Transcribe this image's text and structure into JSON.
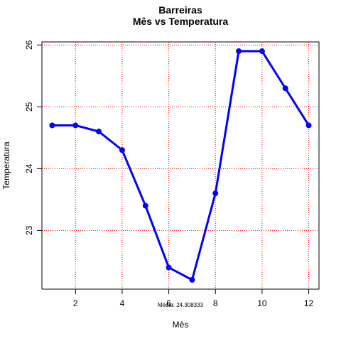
{
  "chart_data": {
    "type": "line",
    "title": "Barreiras",
    "subtitle": "Mês vs Temperatura",
    "xlabel": "Mês",
    "ylabel": "Temperatura",
    "x": [
      1,
      2,
      3,
      4,
      5,
      6,
      7,
      8,
      9,
      10,
      11,
      12
    ],
    "series": [
      {
        "values": [
          24.7,
          24.7,
          24.6,
          24.3,
          23.4,
          22.4,
          22.2,
          23.6,
          25.9,
          25.9,
          25.3,
          24.7
        ]
      }
    ],
    "xlim": [
      0.56,
      12.44
    ],
    "ylim": [
      22.05,
      26.05
    ],
    "xticks": [
      2,
      4,
      6,
      8,
      10,
      12
    ],
    "yticks": [
      23,
      24,
      25,
      26
    ],
    "grid": true,
    "annotation": "Média: 24.308333",
    "colors": {
      "line": "#0000ff",
      "grid": "#ff0000",
      "axis": "#000000"
    }
  }
}
